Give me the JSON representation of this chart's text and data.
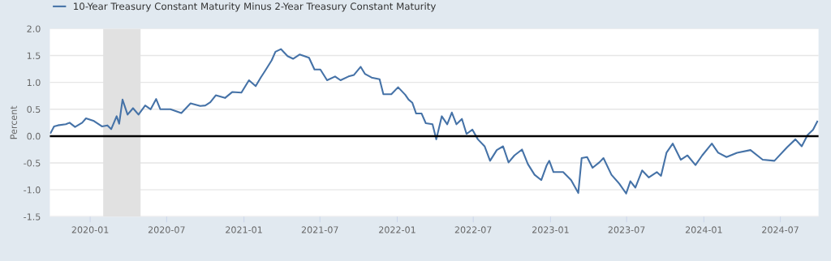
{
  "chart_data": {
    "type": "line",
    "ylabel": "Percent",
    "legend": "top left",
    "grid": "y",
    "marker": "none",
    "line_style": "solid",
    "xlim": [
      "2019-09-27",
      "2024-09-30"
    ],
    "ylim": [
      -1.5,
      2.0
    ],
    "yticks": [
      -1.5,
      {
        "value": -1,
        "label": "-1.0"
      },
      -0.5,
      {
        "value": 0,
        "label": "0.0"
      },
      0.5,
      {
        "value": 1,
        "label": "1.0"
      },
      1.5,
      {
        "value": 2,
        "label": "2.0"
      }
    ],
    "xticks": [
      {
        "value": "2020-01-01",
        "label": "2020-01"
      },
      {
        "value": "2020-07-01",
        "label": "2020-07"
      },
      {
        "value": "2021-01-01",
        "label": "2021-01"
      },
      {
        "value": "2021-07-01",
        "label": "2021-07"
      },
      {
        "value": "2022-01-01",
        "label": "2022-01"
      },
      {
        "value": "2022-07-01",
        "label": "2022-07"
      },
      {
        "value": "2023-01-01",
        "label": "2023-01"
      },
      {
        "value": "2023-07-01",
        "label": "2023-07"
      },
      {
        "value": "2024-01-01",
        "label": "2024-01"
      },
      {
        "value": "2024-07-01",
        "label": "2024-07"
      }
    ],
    "bands": [
      {
        "axis": "x",
        "from": "2020-02-01",
        "to": "2020-04-30",
        "color": "#e1e1e1"
      }
    ],
    "ref_lines": [
      {
        "axis": "y",
        "value": 0,
        "color": "#000000",
        "line_style": "solid"
      }
    ],
    "series": [
      {
        "name": "10-Year Treasury Constant Maturity Minus 2-Year Treasury Constant Maturity",
        "color": "#4572a7",
        "x": [
          "2019-09-29",
          "2019-10-07",
          "2019-10-16",
          "2019-11-04",
          "2019-11-13",
          "2019-11-26",
          "2019-12-13",
          "2019-12-22",
          "2020-01-10",
          "2020-01-29",
          "2020-02-11",
          "2020-02-20",
          "2020-03-04",
          "2020-03-10",
          "2020-03-18",
          "2020-03-30",
          "2020-04-12",
          "2020-04-25",
          "2020-05-11",
          "2020-05-24",
          "2020-06-06",
          "2020-06-16",
          "2020-07-10",
          "2020-08-05",
          "2020-08-27",
          "2020-09-19",
          "2020-10-01",
          "2020-10-13",
          "2020-10-26",
          "2020-11-17",
          "2020-12-04",
          "2020-12-26",
          "2021-01-13",
          "2021-01-29",
          "2021-02-10",
          "2021-02-20",
          "2021-03-08",
          "2021-03-17",
          "2021-03-30",
          "2021-04-15",
          "2021-04-28",
          "2021-05-14",
          "2021-06-05",
          "2021-06-18",
          "2021-07-02",
          "2021-07-18",
          "2021-08-06",
          "2021-08-19",
          "2021-09-07",
          "2021-09-20",
          "2021-10-06",
          "2021-10-16",
          "2021-11-01",
          "2021-11-20",
          "2021-11-29",
          "2021-12-18",
          "2022-01-03",
          "2022-01-20",
          "2022-01-28",
          "2022-02-06",
          "2022-02-15",
          "2022-02-28",
          "2022-03-10",
          "2022-03-26",
          "2022-04-04",
          "2022-04-17",
          "2022-04-30",
          "2022-05-11",
          "2022-05-22",
          "2022-06-04",
          "2022-06-15",
          "2022-06-29",
          "2022-07-12",
          "2022-07-28",
          "2022-08-10",
          "2022-08-26",
          "2022-09-10",
          "2022-09-23",
          "2022-10-07",
          "2022-10-25",
          "2022-11-08",
          "2022-11-24",
          "2022-12-10",
          "2022-12-23",
          "2022-12-29",
          "2023-01-08",
          "2023-01-31",
          "2023-02-19",
          "2023-03-08",
          "2023-03-16",
          "2023-03-29",
          "2023-04-11",
          "2023-04-27",
          "2023-05-07",
          "2023-05-26",
          "2023-06-14",
          "2023-06-30",
          "2023-07-10",
          "2023-07-22",
          "2023-08-07",
          "2023-08-23",
          "2023-09-11",
          "2023-09-21",
          "2023-10-04",
          "2023-10-19",
          "2023-11-07",
          "2023-11-23",
          "2023-12-12",
          "2023-12-28",
          "2024-01-20",
          "2024-02-04",
          "2024-02-24",
          "2024-03-20",
          "2024-04-21",
          "2024-05-20",
          "2024-06-17",
          "2024-07-17",
          "2024-08-06",
          "2024-08-21",
          "2024-09-04",
          "2024-09-17",
          "2024-09-27"
        ],
        "values": [
          0.06,
          0.18,
          0.2,
          0.22,
          0.25,
          0.17,
          0.25,
          0.33,
          0.28,
          0.18,
          0.2,
          0.13,
          0.37,
          0.23,
          0.68,
          0.4,
          0.52,
          0.4,
          0.57,
          0.5,
          0.69,
          0.5,
          0.5,
          0.43,
          0.61,
          0.56,
          0.57,
          0.63,
          0.76,
          0.71,
          0.82,
          0.81,
          1.04,
          0.93,
          1.09,
          1.21,
          1.41,
          1.57,
          1.62,
          1.49,
          1.44,
          1.52,
          1.46,
          1.24,
          1.24,
          1.04,
          1.11,
          1.04,
          1.11,
          1.14,
          1.29,
          1.16,
          1.09,
          1.06,
          0.78,
          0.78,
          0.91,
          0.77,
          0.68,
          0.62,
          0.42,
          0.42,
          0.24,
          0.22,
          -0.06,
          0.37,
          0.22,
          0.44,
          0.22,
          0.32,
          0.04,
          0.12,
          -0.06,
          -0.19,
          -0.46,
          -0.26,
          -0.19,
          -0.49,
          -0.36,
          -0.25,
          -0.52,
          -0.72,
          -0.82,
          -0.54,
          -0.46,
          -0.67,
          -0.67,
          -0.82,
          -1.06,
          -0.41,
          -0.39,
          -0.59,
          -0.49,
          -0.41,
          -0.72,
          -0.89,
          -1.07,
          -0.84,
          -0.96,
          -0.64,
          -0.77,
          -0.67,
          -0.74,
          -0.31,
          -0.14,
          -0.44,
          -0.36,
          -0.54,
          -0.36,
          -0.14,
          -0.31,
          -0.39,
          -0.31,
          -0.26,
          -0.44,
          -0.46,
          -0.21,
          -0.06,
          -0.19,
          0.02,
          0.12,
          0.27
        ]
      }
    ]
  }
}
